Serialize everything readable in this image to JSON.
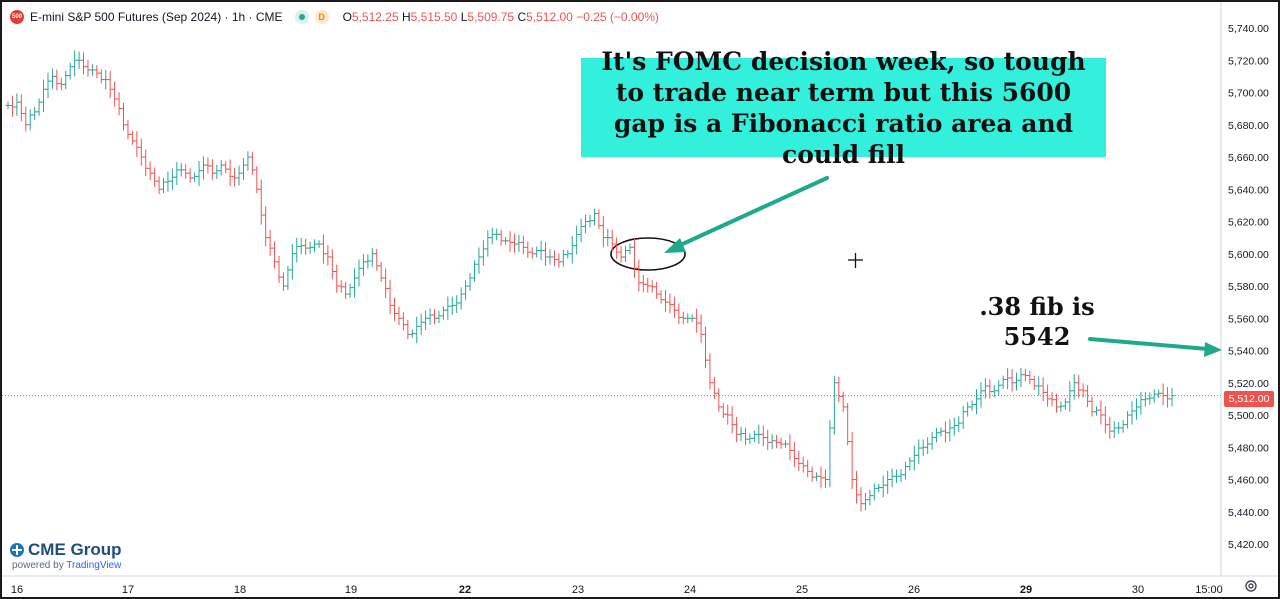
{
  "header": {
    "symbol_badge": "500",
    "title": "E-mini S&P 500 Futures (Sep 2024) · 1h · CME",
    "market_status": "D",
    "ohlc": {
      "open_label": "O",
      "open": "5,512.25",
      "high_label": "H",
      "high": "5,515.50",
      "low_label": "L",
      "low": "5,509.75",
      "close_label": "C",
      "close": "5,512.00",
      "change": "−0.25 (−0.00%)"
    }
  },
  "annotations": {
    "callout": "It's FOMC decision week, so tough to trade near term but this 5600 gap is a Fibonacci ratio area and could fill",
    "fib_line1": ".38 fib is",
    "fib_line2": "5542"
  },
  "price_axis": {
    "current_price": "5,512.00",
    "labels": [
      "5,740.00",
      "5,720.00",
      "5,700.00",
      "5,680.00",
      "5,660.00",
      "5,640.00",
      "5,620.00",
      "5,600.00",
      "5,580.00",
      "5,560.00",
      "5,540.00",
      "5,520.00",
      "5,500.00",
      "5,480.00",
      "5,460.00",
      "5,440.00",
      "5,420.00"
    ]
  },
  "time_axis": {
    "labels": [
      {
        "text": "16",
        "bold": false
      },
      {
        "text": "17",
        "bold": false
      },
      {
        "text": "18",
        "bold": false
      },
      {
        "text": "19",
        "bold": false
      },
      {
        "text": "22",
        "bold": true
      },
      {
        "text": "23",
        "bold": false
      },
      {
        "text": "24",
        "bold": false
      },
      {
        "text": "25",
        "bold": false
      },
      {
        "text": "26",
        "bold": false
      },
      {
        "text": "29",
        "bold": true
      },
      {
        "text": "30",
        "bold": false
      },
      {
        "text": "15:00",
        "bold": false
      }
    ]
  },
  "branding": {
    "name": "CME Group",
    "powered_by": "powered by ",
    "platform": "TradingView"
  },
  "colors": {
    "up": "#26a69a",
    "down": "#ef5350",
    "callout_bg": "#33f0dc",
    "arrow": "#1fa88c",
    "price_line": "#ef5350"
  },
  "chart_data": {
    "type": "ohlc",
    "title": "E-mini S&P 500 Futures (Sep 2024) · 1h · CME",
    "ylim": [
      5415,
      5750
    ],
    "y_ticks": [
      5740,
      5720,
      5700,
      5680,
      5660,
      5640,
      5620,
      5600,
      5580,
      5560,
      5540,
      5520,
      5500,
      5480,
      5460,
      5440,
      5420
    ],
    "x_ticks": [
      "16",
      "17",
      "18",
      "19",
      "22",
      "23",
      "24",
      "25",
      "26",
      "29",
      "30",
      "15:00"
    ],
    "current_price": 5512.0,
    "annotated_gap_level": 5600,
    "fib_level": 5542,
    "segments": [
      {
        "label": "16",
        "points": [
          5692,
          5694,
          5680,
          5688,
          5702,
          5710,
          5705,
          5716,
          5720
        ]
      },
      {
        "label": "17",
        "points": [
          5714,
          5712,
          5708,
          5696,
          5680,
          5670,
          5660,
          5650,
          5640,
          5645,
          5652,
          5650,
          5648,
          5655,
          5650
        ]
      },
      {
        "label": "18",
        "points": [
          5655,
          5648,
          5650,
          5660,
          5640,
          5610,
          5595,
          5580,
          5600,
          5605,
          5604,
          5606
        ]
      },
      {
        "label": "19",
        "points": [
          5598,
          5580,
          5575,
          5585,
          5595,
          5600,
          5585,
          5568,
          5560,
          5550,
          5555,
          5560
        ]
      },
      {
        "label": "22",
        "points": [
          5560,
          5565,
          5568,
          5575,
          5585,
          5598,
          5610,
          5612,
          5608,
          5606,
          5604,
          5600,
          5602,
          5598,
          5595
        ]
      },
      {
        "label": "23",
        "points": [
          5600,
          5612,
          5620,
          5625,
          5610,
          5606,
          5598,
          5604,
          5582,
          5580,
          5575,
          5570,
          5565,
          5560,
          5560
        ]
      },
      {
        "label": "24",
        "points": [
          5550,
          5520,
          5505,
          5500,
          5488,
          5485,
          5488,
          5486,
          5484,
          5482,
          5478,
          5470,
          5465,
          5462,
          5460,
          5520
        ]
      },
      {
        "label": "25",
        "points": [
          5505,
          5460,
          5445,
          5450,
          5455,
          5460,
          5462,
          5468,
          5475,
          5480,
          5486,
          5490,
          5492,
          5495,
          5505
        ]
      },
      {
        "label": "26",
        "points": [
          5510,
          5518,
          5515,
          5522,
          5520,
          5525,
          5522,
          5518,
          5510,
          5505,
          5508,
          5520,
          5515,
          5502,
          5500,
          5490
        ]
      },
      {
        "label": "29",
        "points": [
          5492,
          5500,
          5505,
          5510,
          5513,
          5512,
          5512
        ]
      }
    ]
  }
}
